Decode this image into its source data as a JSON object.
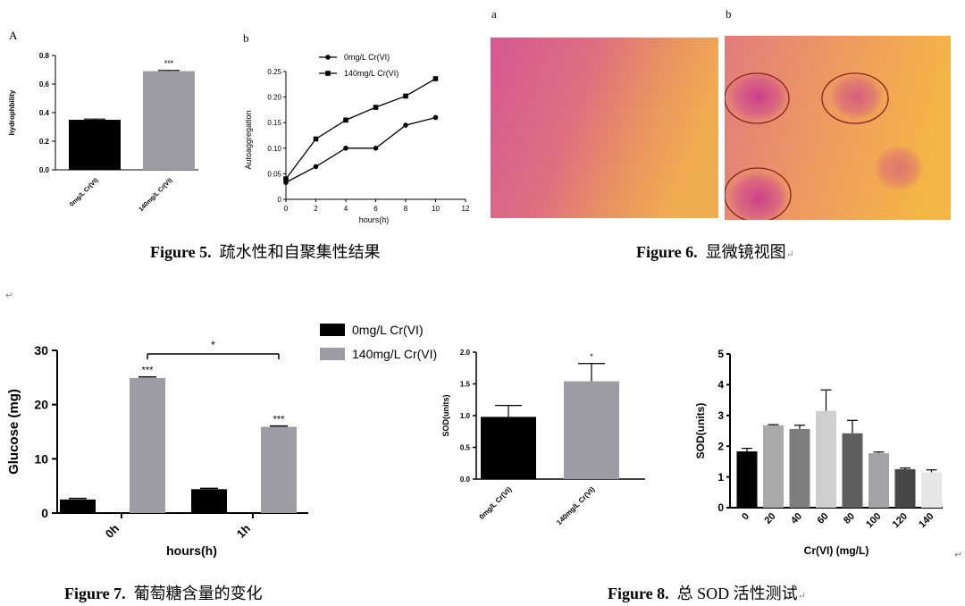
{
  "figure5": {
    "caption_label": "Figure 5.",
    "caption_text": "疏水性和自聚集性结果",
    "panelA": {
      "letter": "A",
      "chart_data": {
        "type": "bar",
        "ylabel": "hydrophbility",
        "ylim": [
          0,
          0.8
        ],
        "yticks": [
          "0.0",
          "0.2",
          "0.4",
          "0.6",
          "0.8"
        ],
        "categories": [
          "0mg/L Cr(VI)",
          "140mg/L Cr(VI)"
        ],
        "values": [
          0.35,
          0.69
        ],
        "errors": [
          0.005,
          0.005
        ],
        "colors": [
          "#000000",
          "#9c9ca4"
        ],
        "annotations": [
          "",
          "***"
        ]
      }
    },
    "panelB": {
      "letter": "b",
      "chart_data": {
        "type": "line",
        "xlabel": "hours(h)",
        "ylabel": "Autoaggregation",
        "xlim": [
          0,
          12
        ],
        "ylim": [
          0,
          0.25
        ],
        "xticks": [
          "0",
          "2",
          "4",
          "6",
          "8",
          "10",
          "12"
        ],
        "yticks": [
          "0",
          "0.05",
          "0.10",
          "0.15",
          "0.20",
          "0.25"
        ],
        "series": [
          {
            "name": "0mg/L Cr(VI)",
            "marker": "circle",
            "x": [
              0,
              2,
              4,
              6,
              8,
              10
            ],
            "y": [
              0.033,
              0.064,
              0.1,
              0.1,
              0.145,
              0.16
            ]
          },
          {
            "name": "140mg/L Cr(VI)",
            "marker": "square",
            "x": [
              0,
              2,
              4,
              6,
              8,
              10
            ],
            "y": [
              0.04,
              0.118,
              0.155,
              0.18,
              0.202,
              0.236
            ]
          }
        ]
      }
    }
  },
  "figure6": {
    "caption_label": "Figure 6.",
    "caption_text": "显微镜视图",
    "panel_a_letter": "a",
    "panel_b_letter": "b"
  },
  "figure7": {
    "caption_label": "Figure 7.",
    "caption_text": "葡萄糖含量的变化",
    "chart_data": {
      "type": "bar",
      "xlabel": "hours(h)",
      "ylabel": "Glucose (mg)",
      "ylim": [
        0,
        30
      ],
      "yticks": [
        "0",
        "10",
        "20",
        "30"
      ],
      "categories": [
        "0h",
        "1h"
      ],
      "series": [
        {
          "name": "0mg/L Cr(VI)",
          "color": "#000000",
          "values": [
            2.5,
            4.4
          ],
          "errors": [
            0.2,
            0.15
          ]
        },
        {
          "name": "140mg/L Cr(VI)",
          "color": "#9c9ca4",
          "values": [
            24.9,
            15.9
          ],
          "errors": [
            0.2,
            0.15
          ]
        }
      ],
      "annotations": {
        "bar_stars": [
          "***",
          "***"
        ],
        "bracket_star": "*"
      }
    }
  },
  "figure8": {
    "caption_label": "Figure 8.",
    "caption_text": "总 SOD 活性测试",
    "left_chart": {
      "chart_data": {
        "type": "bar",
        "ylabel": "SOD(units)",
        "ylim": [
          0,
          2.0
        ],
        "yticks": [
          "0.0",
          "0.5",
          "1.0",
          "1.5",
          "2.0"
        ],
        "categories": [
          "0mg/L Cr(VI)",
          "140mg/L Cr(VI)"
        ],
        "values": [
          0.98,
          1.54
        ],
        "errors": [
          0.18,
          0.28
        ],
        "colors": [
          "#000000",
          "#9c9ca4"
        ],
        "annotations": [
          "",
          "*"
        ]
      }
    },
    "right_chart": {
      "chart_data": {
        "type": "bar",
        "xlabel": "Cr(VI) (mg/L)",
        "ylabel": "SOD(units)",
        "ylim": [
          0,
          5
        ],
        "yticks": [
          "0",
          "1",
          "2",
          "3",
          "4",
          "5"
        ],
        "categories": [
          "0",
          "20",
          "40",
          "60",
          "80",
          "100",
          "120",
          "140"
        ],
        "values": [
          1.83,
          2.68,
          2.56,
          3.15,
          2.42,
          1.77,
          1.25,
          1.15
        ],
        "errors": [
          0.1,
          0.02,
          0.12,
          0.68,
          0.42,
          0.04,
          0.04,
          0.08
        ],
        "colors": [
          "#000000",
          "#aaaaaa",
          "#7f7f7f",
          "#cfcfcf",
          "#5e5e5e",
          "#a2a2a8",
          "#474747",
          "#e6e6e6"
        ]
      }
    }
  },
  "marks": {
    "return_mark": "↵"
  }
}
